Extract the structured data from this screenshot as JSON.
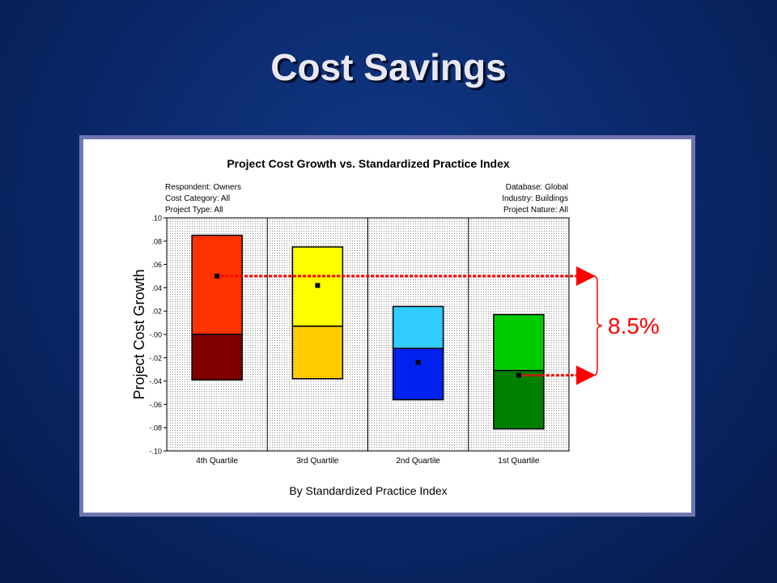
{
  "slide": {
    "title": "Cost Savings"
  },
  "chart_data": {
    "type": "box",
    "title": "Project Cost Growth vs. Standardized Practice Index",
    "xlabel": "By Standardized Practice Index",
    "ylabel": "Project Cost Growth",
    "ylim": [
      -0.1,
      0.1
    ],
    "ytick_labels": [
      ".10",
      ".08",
      ".06",
      ".04",
      ".02",
      "-.00",
      "-.02",
      "-.04",
      "-.06",
      "-.08",
      "-.10"
    ],
    "ytick_values": [
      0.1,
      0.08,
      0.06,
      0.04,
      0.02,
      0.0,
      -0.02,
      -0.04,
      -0.06,
      -0.08,
      -0.1
    ],
    "grid": true,
    "info_left": [
      "Respondent: Owners",
      "Cost Category: All",
      "Project Type: All"
    ],
    "info_right": [
      "Database: Global",
      "Industry: Buildings",
      "Project Nature: All"
    ],
    "categories": [
      "4th Quartile",
      "3rd Quartile",
      "2nd Quartile",
      "1st Quartile"
    ],
    "boxes": [
      {
        "low": -0.039,
        "median": 0.0,
        "high": 0.085,
        "mean": 0.05,
        "upper_color": "#ff3300",
        "lower_color": "#800000"
      },
      {
        "low": -0.038,
        "median": 0.007,
        "high": 0.075,
        "mean": 0.042,
        "upper_color": "#ffff00",
        "lower_color": "#ffcc00"
      },
      {
        "low": -0.056,
        "median": -0.012,
        "high": 0.024,
        "mean": -0.024,
        "upper_color": "#33ccff",
        "lower_color": "#0022ee"
      },
      {
        "low": -0.081,
        "median": -0.031,
        "high": 0.017,
        "mean": -0.035,
        "upper_color": "#00cc00",
        "lower_color": "#008000"
      }
    ],
    "annotation": {
      "label": "8.5%",
      "from_value": 0.05,
      "to_value": -0.035,
      "color": "#ff0000"
    }
  }
}
